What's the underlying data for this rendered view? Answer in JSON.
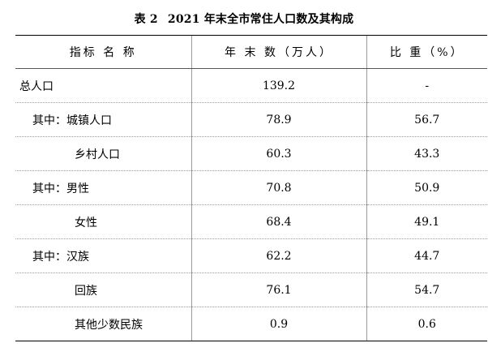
{
  "document": {
    "table_number": "表 2",
    "table_title": "2021 年末全市常住人口数及其构成"
  },
  "table": {
    "headers": [
      "指标 名 称",
      "年 末 数（万人）",
      "比 重（%）"
    ],
    "rows": [
      {
        "label": "总人口",
        "value": "139.2",
        "share": "-"
      },
      {
        "label": "其中：城镇人口",
        "value": "78.9",
        "share": "56.7"
      },
      {
        "label": "乡村人口",
        "value": "60.3",
        "share": "43.3"
      },
      {
        "label": "其中：男性",
        "value": "70.8",
        "share": "50.9"
      },
      {
        "label": "女性",
        "value": "68.4",
        "share": "49.1"
      },
      {
        "label": "其中：汉族",
        "value": "62.2",
        "share": "44.7"
      },
      {
        "label": "回族",
        "value": "76.1",
        "share": "54.7"
      },
      {
        "label": "其他少数民族",
        "value": "0.9",
        "share": "0.6"
      }
    ]
  }
}
